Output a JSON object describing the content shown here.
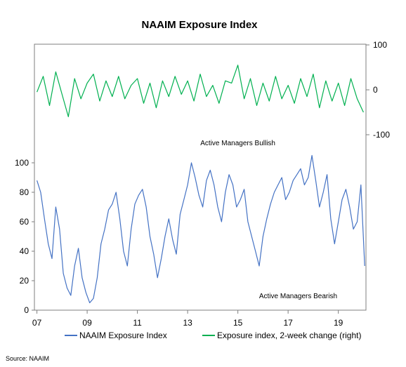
{
  "chart_data": {
    "type": "line",
    "title": "NAAIM Exposure Index",
    "source": "Source: NAAIM",
    "x_axis": {
      "range": [
        2006.9,
        2020.1
      ],
      "tick_values": [
        2007,
        2009,
        2011,
        2013,
        2015,
        2017,
        2019
      ],
      "tick_labels": [
        "07",
        "09",
        "11",
        "13",
        "15",
        "17",
        "19"
      ]
    },
    "y_left": {
      "range": [
        0,
        100
      ],
      "ticks": [
        0,
        20,
        40,
        60,
        80,
        100
      ]
    },
    "y_right": {
      "range": [
        -100,
        100
      ],
      "ticks": [
        -100,
        0,
        100
      ]
    },
    "grid": false,
    "legend_position": "bottom",
    "annotations": [
      {
        "text": "Active Managers  Bullish",
        "x": 2015.0,
        "y": 112
      },
      {
        "text": "Active Managers  Bearish",
        "x": 2017.4,
        "y": 8
      }
    ],
    "series": [
      {
        "name": "NAAIM Exposure Index",
        "axis": "left",
        "color": "#4472c4",
        "x": [
          2007.0,
          2007.15,
          2007.3,
          2007.45,
          2007.6,
          2007.75,
          2007.9,
          2008.05,
          2008.2,
          2008.35,
          2008.5,
          2008.65,
          2008.8,
          2008.95,
          2009.1,
          2009.25,
          2009.4,
          2009.55,
          2009.7,
          2009.85,
          2010.0,
          2010.15,
          2010.3,
          2010.45,
          2010.6,
          2010.75,
          2010.9,
          2011.05,
          2011.2,
          2011.35,
          2011.5,
          2011.65,
          2011.8,
          2011.95,
          2012.1,
          2012.25,
          2012.4,
          2012.55,
          2012.7,
          2012.85,
          2013.0,
          2013.15,
          2013.3,
          2013.45,
          2013.6,
          2013.75,
          2013.9,
          2014.05,
          2014.2,
          2014.35,
          2014.5,
          2014.65,
          2014.8,
          2014.95,
          2015.1,
          2015.25,
          2015.4,
          2015.55,
          2015.7,
          2015.85,
          2016.0,
          2016.15,
          2016.3,
          2016.45,
          2016.6,
          2016.75,
          2016.9,
          2017.05,
          2017.2,
          2017.35,
          2017.5,
          2017.65,
          2017.8,
          2017.95,
          2018.1,
          2018.25,
          2018.4,
          2018.55,
          2018.7,
          2018.85,
          2019.0,
          2019.15,
          2019.3,
          2019.45,
          2019.6,
          2019.75,
          2019.9,
          2020.05
        ],
        "values": [
          88,
          80,
          62,
          45,
          35,
          70,
          55,
          25,
          15,
          10,
          30,
          42,
          22,
          12,
          5,
          8,
          22,
          45,
          55,
          68,
          72,
          80,
          62,
          40,
          30,
          55,
          72,
          78,
          82,
          70,
          50,
          38,
          22,
          35,
          50,
          62,
          48,
          38,
          65,
          75,
          85,
          100,
          90,
          78,
          70,
          88,
          95,
          85,
          70,
          60,
          80,
          92,
          85,
          70,
          75,
          82,
          60,
          50,
          40,
          30,
          50,
          62,
          72,
          80,
          85,
          90,
          75,
          80,
          88,
          92,
          96,
          85,
          90,
          105,
          88,
          70,
          80,
          92,
          62,
          45,
          60,
          75,
          82,
          70,
          55,
          60,
          85,
          30
        ]
      },
      {
        "name": "Exposure index, 2-week change (right)",
        "axis": "right",
        "color": "#00b050",
        "x": [
          2007.0,
          2007.25,
          2007.5,
          2007.75,
          2008.0,
          2008.25,
          2008.5,
          2008.75,
          2009.0,
          2009.25,
          2009.5,
          2009.75,
          2010.0,
          2010.25,
          2010.5,
          2010.75,
          2011.0,
          2011.25,
          2011.5,
          2011.75,
          2012.0,
          2012.25,
          2012.5,
          2012.75,
          2013.0,
          2013.25,
          2013.5,
          2013.75,
          2014.0,
          2014.25,
          2014.5,
          2014.75,
          2015.0,
          2015.25,
          2015.5,
          2015.75,
          2016.0,
          2016.25,
          2016.5,
          2016.75,
          2017.0,
          2017.25,
          2017.5,
          2017.75,
          2018.0,
          2018.25,
          2018.5,
          2018.75,
          2019.0,
          2019.25,
          2019.5,
          2019.75,
          2020.0
        ],
        "values": [
          -5,
          30,
          -35,
          40,
          -10,
          -60,
          25,
          -20,
          15,
          35,
          -25,
          20,
          -15,
          30,
          -20,
          10,
          25,
          -30,
          15,
          -40,
          20,
          -15,
          30,
          -10,
          20,
          -25,
          35,
          -15,
          10,
          -30,
          20,
          15,
          55,
          -20,
          25,
          -35,
          15,
          -25,
          30,
          -20,
          10,
          -30,
          25,
          -15,
          35,
          -40,
          20,
          -25,
          15,
          -35,
          25,
          -20,
          -50
        ]
      }
    ]
  }
}
